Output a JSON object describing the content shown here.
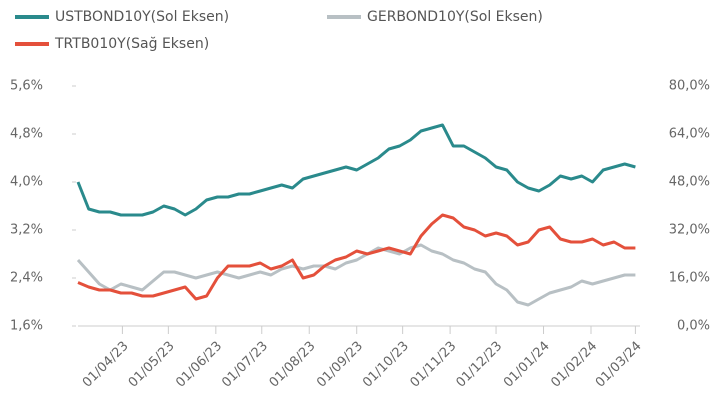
{
  "chart_data": {
    "type": "line",
    "x": [
      "03/03/23",
      "10/03/23",
      "17/03/23",
      "24/03/23",
      "31/03/23",
      "07/04/23",
      "14/04/23",
      "21/04/23",
      "28/04/23",
      "05/05/23",
      "12/05/23",
      "19/05/23",
      "26/05/23",
      "02/06/23",
      "09/06/23",
      "16/06/23",
      "23/06/23",
      "30/06/23",
      "07/07/23",
      "14/07/23",
      "21/07/23",
      "28/07/23",
      "04/08/23",
      "11/08/23",
      "18/08/23",
      "25/08/23",
      "01/09/23",
      "08/09/23",
      "15/09/23",
      "22/09/23",
      "29/09/23",
      "06/10/23",
      "13/10/23",
      "20/10/23",
      "27/10/23",
      "03/11/23",
      "10/11/23",
      "17/11/23",
      "24/11/23",
      "01/12/23",
      "08/12/23",
      "15/12/23",
      "22/12/23",
      "29/12/23",
      "05/01/24",
      "12/01/24",
      "19/01/24",
      "26/01/24",
      "02/02/24",
      "09/02/24",
      "16/02/24",
      "23/02/24",
      "01/03/24"
    ],
    "xticks": [
      "01/04/23",
      "01/05/23",
      "01/06/23",
      "01/07/23",
      "01/08/23",
      "01/09/23",
      "01/10/23",
      "01/11/23",
      "01/12/23",
      "01/01/24",
      "01/02/24",
      "01/03/24"
    ],
    "xlim": [
      "03/03/23",
      "04/03/24"
    ],
    "ylim": [
      1.6,
      5.6
    ],
    "yticks": [
      {
        "value": 1.6,
        "label": "1,6%"
      },
      {
        "value": 2.4,
        "label": "2,4%"
      },
      {
        "value": 3.2,
        "label": "3,2%"
      },
      {
        "value": 4.0,
        "label": "4,0%"
      },
      {
        "value": 4.8,
        "label": "4,8%"
      },
      {
        "value": 5.6,
        "label": "5,6%"
      }
    ],
    "y2lim": [
      0,
      80
    ],
    "y2ticks": [
      {
        "value": 0,
        "label": "0,0%"
      },
      {
        "value": 16,
        "label": "16,0%"
      },
      {
        "value": 32,
        "label": "32,0%"
      },
      {
        "value": 48,
        "label": "48,0%"
      },
      {
        "value": 64,
        "label": "64,0%"
      },
      {
        "value": 80,
        "label": "80,0%"
      }
    ],
    "series": [
      {
        "name": "USTBOND10Y(Sol Eksen)",
        "color": "#2a8a8c",
        "values": [
          4.0,
          3.55,
          3.5,
          3.5,
          3.45,
          3.45,
          3.45,
          3.5,
          3.6,
          3.55,
          3.45,
          3.55,
          3.7,
          3.75,
          3.75,
          3.8,
          3.8,
          3.85,
          3.9,
          3.95,
          3.9,
          4.05,
          4.1,
          4.15,
          4.2,
          4.25,
          4.2,
          4.3,
          4.4,
          4.55,
          4.6,
          4.7,
          4.85,
          4.9,
          4.95,
          4.6,
          4.6,
          4.5,
          4.4,
          4.25,
          4.2,
          4.0,
          3.9,
          3.85,
          3.95,
          4.1,
          4.05,
          4.1,
          4.0,
          4.2,
          4.25,
          4.3,
          4.25
        ]
      },
      {
        "name": "GERBOND10Y(Sol Eksen)",
        "color": "#b8c0c4",
        "values": [
          2.7,
          2.5,
          2.3,
          2.2,
          2.3,
          2.25,
          2.2,
          2.35,
          2.5,
          2.5,
          2.45,
          2.4,
          2.45,
          2.5,
          2.45,
          2.4,
          2.45,
          2.5,
          2.45,
          2.55,
          2.6,
          2.55,
          2.6,
          2.6,
          2.55,
          2.65,
          2.7,
          2.8,
          2.9,
          2.85,
          2.8,
          2.9,
          2.95,
          2.85,
          2.8,
          2.7,
          2.65,
          2.55,
          2.5,
          2.3,
          2.2,
          2.0,
          1.95,
          2.05,
          2.15,
          2.2,
          2.25,
          2.35,
          2.3,
          2.35,
          2.4,
          2.45,
          2.45
        ]
      },
      {
        "name": "TRTB010Y(Sağ Eksen)",
        "color": "#e4503b",
        "axis": "y2",
        "values": [
          14.5,
          13,
          12,
          12,
          11,
          11,
          10,
          10,
          11,
          12,
          13,
          9,
          10,
          16,
          20,
          20,
          20,
          21,
          19,
          20,
          22,
          16,
          17,
          20,
          22,
          23,
          25,
          24,
          25,
          26,
          25,
          24,
          30,
          34,
          37,
          36,
          33,
          32,
          30,
          31,
          30,
          27,
          28,
          32,
          33,
          29,
          28,
          28,
          29,
          27,
          28,
          26,
          26
        ]
      }
    ]
  }
}
